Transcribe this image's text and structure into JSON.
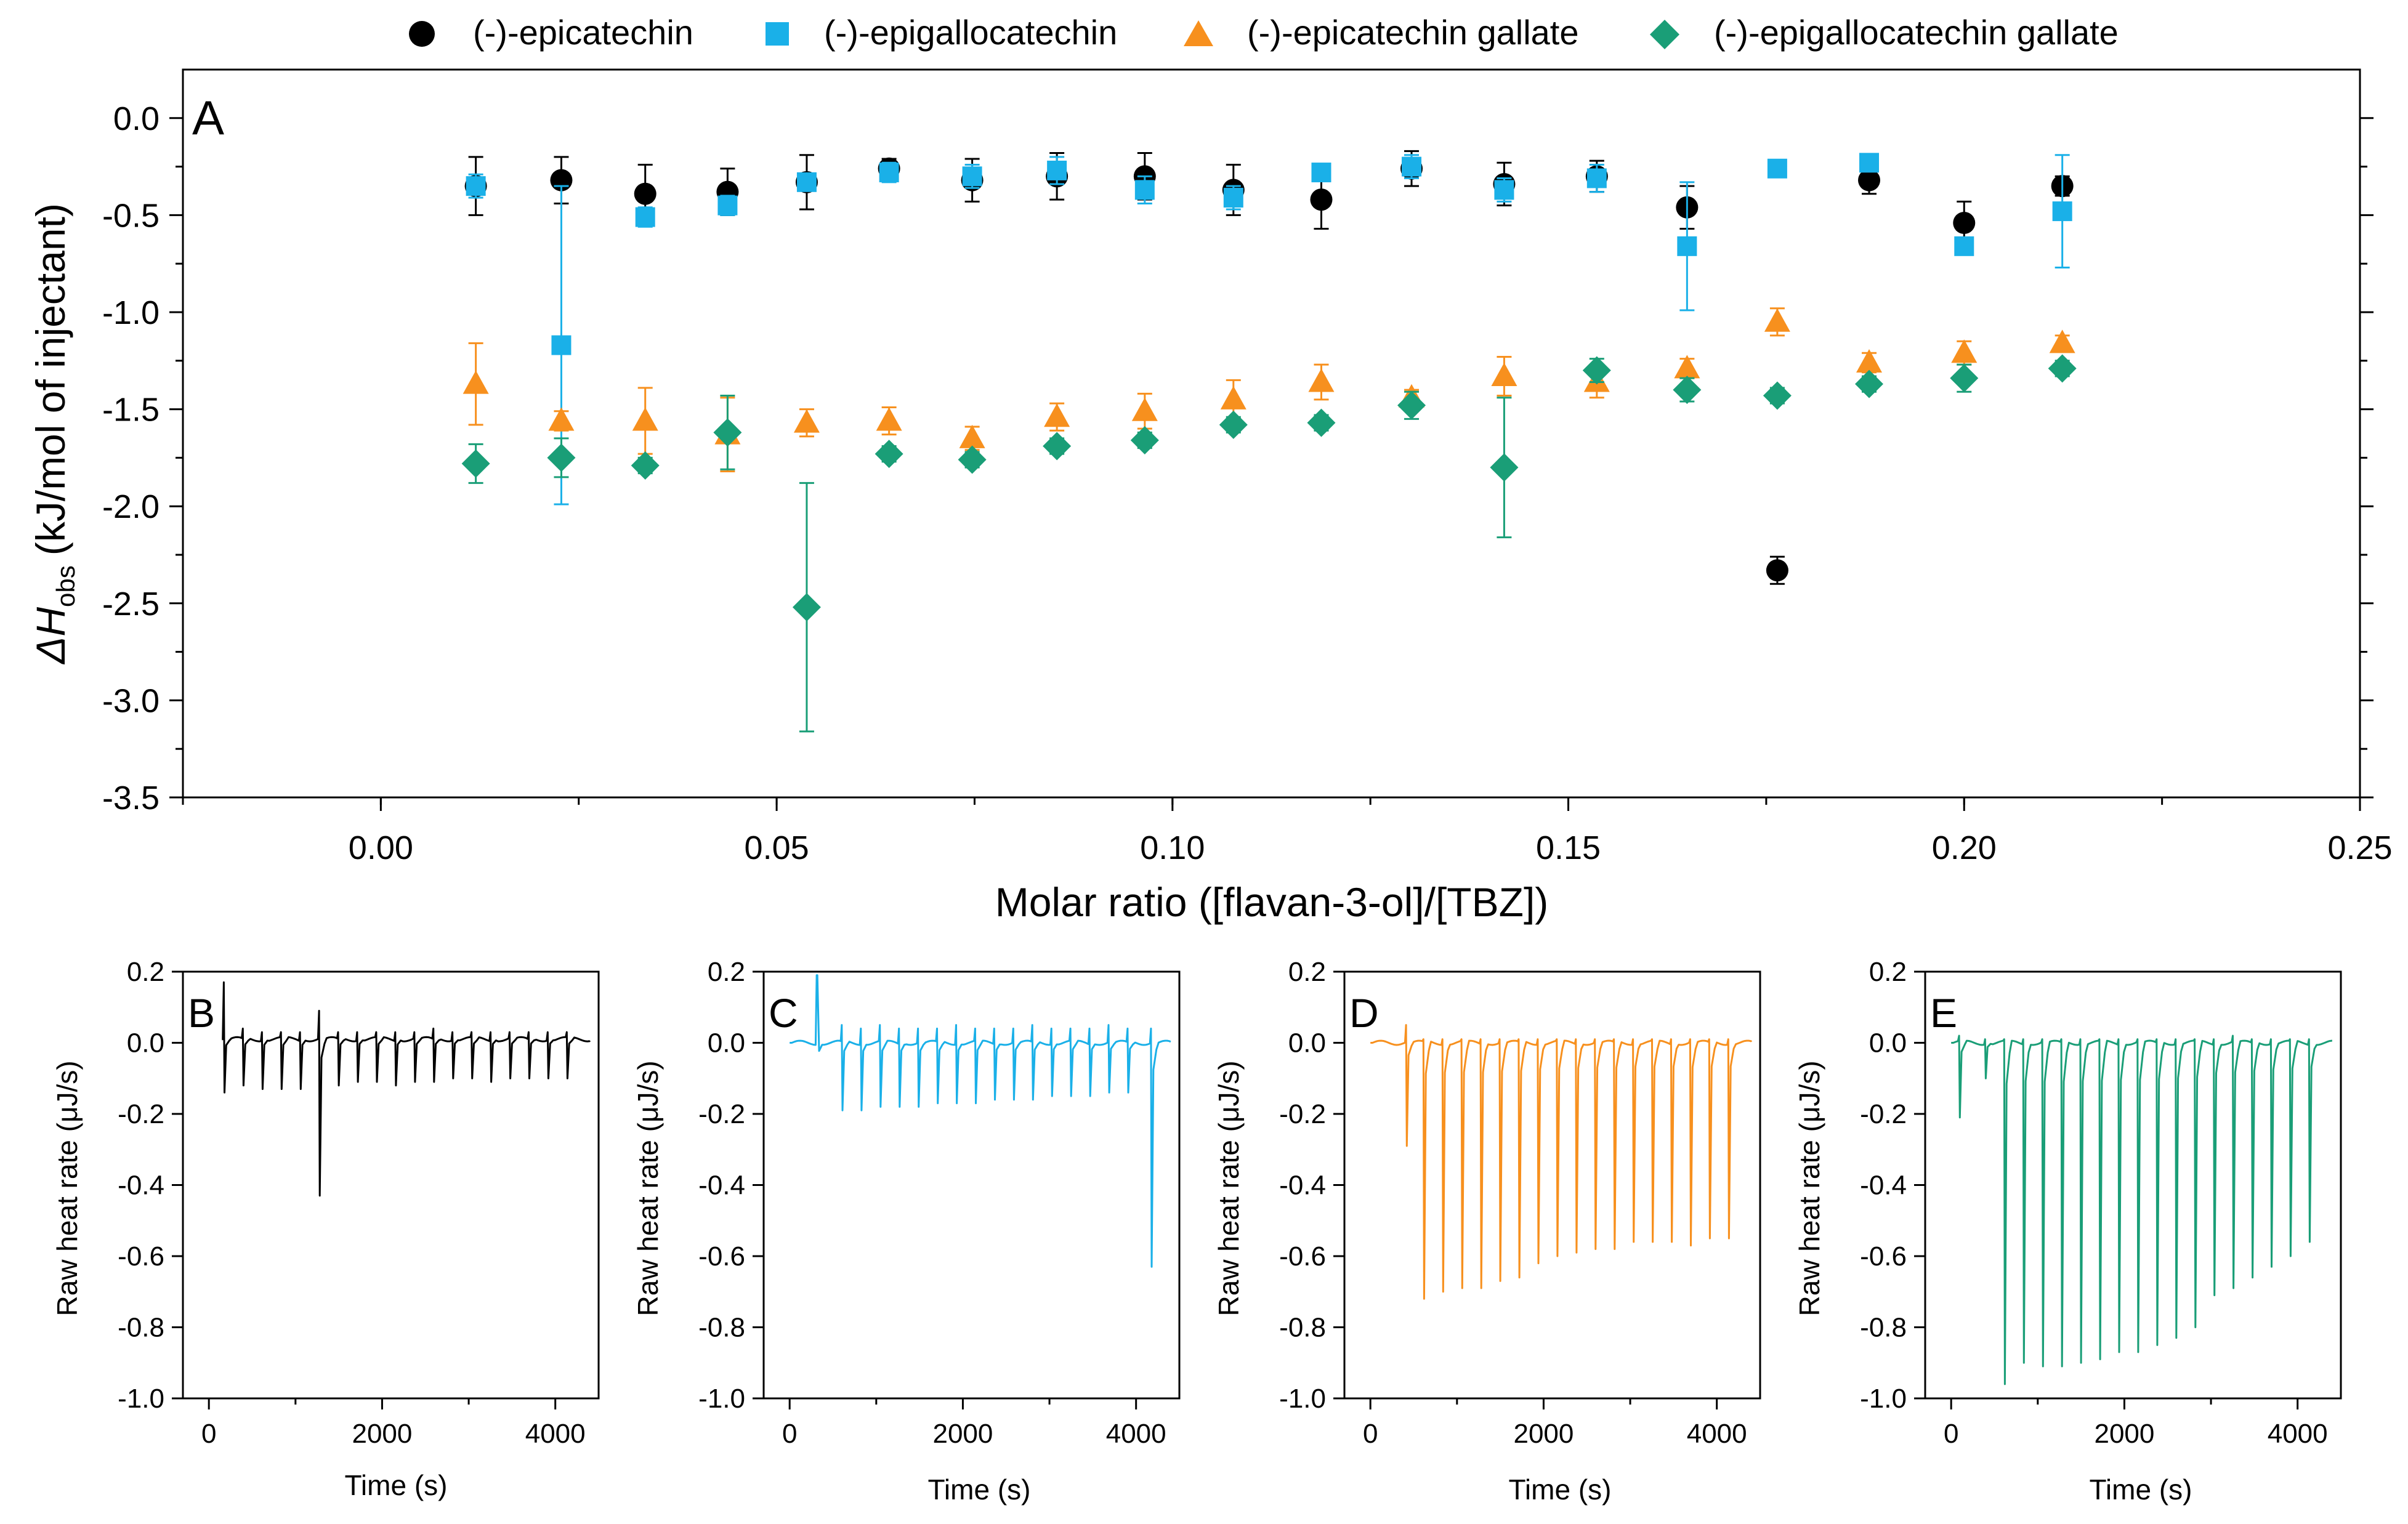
{
  "chart_data": [
    {
      "panel": "A",
      "type": "scatter",
      "title": "",
      "xlabel": "Molar ratio ([flavan-3-ol]/[TBZ])",
      "ylabel_prefix": "ΔH",
      "ylabel_sub": "obs",
      "ylabel_suffix": "(kJ/mol of injectant)",
      "xlim": [
        -0.025,
        0.25
      ],
      "ylim": [
        -3.5,
        0.25
      ],
      "x_ticks": [
        0.0,
        0.05,
        0.1,
        0.15,
        0.2,
        0.25
      ],
      "x_tick_labels": [
        "0.00",
        "0.05",
        "0.10",
        "0.15",
        "0.20",
        "0.25"
      ],
      "y_ticks": [
        0.0,
        -0.5,
        -1.0,
        -1.5,
        -2.0,
        -2.5,
        -3.0,
        -3.5
      ],
      "y_tick_labels": [
        "0.0",
        "-0.5",
        "-1.0",
        "-1.5",
        "-2.0",
        "-2.5",
        "-3.0",
        "-3.5"
      ],
      "legend_position": "top",
      "series": [
        {
          "name": "(-)-epicatechin",
          "color": "#000000",
          "marker": "circle",
          "x": [
            0.012,
            0.0228,
            0.0334,
            0.0438,
            0.0538,
            0.0642,
            0.0747,
            0.0854,
            0.0965,
            0.1077,
            0.1188,
            0.1302,
            0.1419,
            0.1536,
            0.165,
            0.1764,
            0.188,
            0.2,
            0.2124
          ],
          "y": [
            -0.35,
            -0.32,
            -0.39,
            -0.38,
            -0.33,
            -0.26,
            -0.32,
            -0.3,
            -0.3,
            -0.37,
            -0.42,
            -0.26,
            -0.34,
            -0.3,
            -0.46,
            -2.33,
            -0.32,
            -0.54,
            -0.35
          ],
          "err": [
            0.15,
            0.12,
            0.15,
            0.12,
            0.14,
            0.05,
            0.11,
            0.12,
            0.12,
            0.13,
            0.15,
            0.09,
            0.11,
            0.08,
            0.11,
            0.07,
            0.07,
            0.11,
            0.05
          ]
        },
        {
          "name": "(-)-epigallocatechin",
          "color": "#1ab0e8",
          "marker": "square",
          "x": [
            0.012,
            0.0228,
            0.0334,
            0.0438,
            0.0538,
            0.0642,
            0.0747,
            0.0854,
            0.0965,
            0.1077,
            0.1188,
            0.1302,
            0.1419,
            0.1536,
            0.165,
            0.1764,
            0.188,
            0.2,
            0.2124
          ],
          "y": [
            -0.35,
            -1.17,
            -0.51,
            -0.45,
            -0.33,
            -0.28,
            -0.3,
            -0.27,
            -0.37,
            -0.41,
            -0.28,
            -0.25,
            -0.37,
            -0.31,
            -0.66,
            -0.26,
            -0.23,
            -0.66,
            -0.48
          ],
          "err": [
            0.06,
            0.82,
            0.05,
            0.05,
            0.04,
            0.05,
            0.06,
            0.07,
            0.07,
            0.06,
            0.04,
            0.06,
            0.06,
            0.07,
            0.33,
            0.03,
            0.04,
            0.04,
            0.29
          ]
        },
        {
          "name": "(-)-epicatechin gallate",
          "color": "#f7901e",
          "marker": "triangle",
          "x": [
            0.012,
            0.0228,
            0.0334,
            0.0438,
            0.0538,
            0.0642,
            0.0747,
            0.0854,
            0.0965,
            0.1077,
            0.1188,
            0.1302,
            0.1419,
            0.1536,
            0.165,
            0.1764,
            0.188,
            0.2,
            0.2124
          ],
          "y": [
            -1.37,
            -1.56,
            -1.56,
            -1.63,
            -1.57,
            -1.56,
            -1.65,
            -1.54,
            -1.51,
            -1.45,
            -1.36,
            -1.44,
            -1.33,
            -1.36,
            -1.29,
            -1.05,
            -1.26,
            -1.21,
            -1.16
          ],
          "err": [
            0.21,
            0.05,
            0.17,
            0.19,
            0.07,
            0.07,
            0.06,
            0.07,
            0.09,
            0.1,
            0.09,
            0.04,
            0.1,
            0.08,
            0.05,
            0.07,
            0.05,
            0.06,
            0.04
          ]
        },
        {
          "name": "(-)-epigallocatechin gallate",
          "color": "#1a9e77",
          "marker": "diamond",
          "x": [
            0.012,
            0.0228,
            0.0334,
            0.0438,
            0.0538,
            0.0642,
            0.0747,
            0.0854,
            0.0965,
            0.1077,
            0.1188,
            0.1302,
            0.1419,
            0.1536,
            0.165,
            0.1764,
            0.188,
            0.2,
            0.2124
          ],
          "y": [
            -1.78,
            -1.75,
            -1.79,
            -1.62,
            -2.52,
            -1.73,
            -1.76,
            -1.69,
            -1.66,
            -1.58,
            -1.57,
            -1.48,
            -1.8,
            -1.3,
            -1.4,
            -1.43,
            -1.37,
            -1.34,
            -1.29
          ],
          "err": [
            0.1,
            0.1,
            0.04,
            0.19,
            0.64,
            0.04,
            0.04,
            0.04,
            0.04,
            0.04,
            0.04,
            0.07,
            0.36,
            0.06,
            0.06,
            0.04,
            0.04,
            0.07,
            0.04
          ]
        }
      ]
    },
    {
      "panel": "B",
      "type": "line",
      "title": "",
      "xlabel": "Time (s)",
      "ylabel": "Raw heat rate (μJ/s)",
      "color": "#000000",
      "xlim": [
        -300,
        4500
      ],
      "ylim": [
        -1.0,
        0.2
      ],
      "x_ticks": [
        0,
        2000,
        4000
      ],
      "x_tick_labels": [
        "0",
        "2000",
        "4000"
      ],
      "y_ticks": [
        0.2,
        0.0,
        -0.2,
        -0.4,
        -0.6,
        -0.8,
        -1.0
      ],
      "y_tick_labels": [
        "0.2",
        "0.0",
        "-0.2",
        "-0.4",
        "-0.6",
        "-0.8",
        "-1.0"
      ],
      "baseline": 0.01,
      "start_time": 150,
      "end_time": 4400,
      "injection_times": [
        180,
        400,
        620,
        840,
        1060,
        1280,
        1500,
        1720,
        1940,
        2160,
        2380,
        2600,
        2820,
        3040,
        3260,
        3480,
        3700,
        3920,
        4140
      ],
      "peak_values": [
        -0.14,
        -0.12,
        -0.13,
        -0.13,
        -0.13,
        -0.43,
        -0.12,
        -0.11,
        -0.11,
        -0.12,
        -0.11,
        -0.11,
        -0.1,
        -0.1,
        -0.11,
        -0.1,
        -0.1,
        -0.1,
        -0.1
      ],
      "spike_values": [
        0.16,
        0.03,
        0.02,
        0.02,
        0.02,
        0.08,
        0.02,
        0.02,
        0.02,
        0.02,
        0.02,
        0.03,
        0.02,
        0.02,
        0.02,
        0.02,
        0.02,
        0.02,
        0.02
      ]
    },
    {
      "panel": "C",
      "type": "line",
      "title": "",
      "xlabel": "Time (s)",
      "ylabel": "Raw heat rate (μJ/s)",
      "color": "#1ab0e8",
      "xlim": [
        -300,
        4500
      ],
      "ylim": [
        -1.0,
        0.2
      ],
      "x_ticks": [
        0,
        2000,
        4000
      ],
      "x_tick_labels": [
        "0",
        "2000",
        "4000"
      ],
      "y_ticks": [
        0.2,
        0.0,
        -0.2,
        -0.4,
        -0.6,
        -0.8,
        -1.0
      ],
      "y_tick_labels": [
        "0.2",
        "0.0",
        "-0.2",
        "-0.4",
        "-0.6",
        "-0.8",
        "-1.0"
      ],
      "baseline": 0.0,
      "start_time": 0,
      "end_time": 4400,
      "injection_times": [
        320,
        610,
        830,
        1050,
        1270,
        1490,
        1710,
        1930,
        2150,
        2370,
        2590,
        2810,
        3030,
        3250,
        3470,
        3690,
        3910,
        4180
      ],
      "peak_values": [
        0.19,
        -0.19,
        -0.19,
        -0.18,
        -0.18,
        -0.18,
        -0.17,
        -0.17,
        -0.17,
        -0.16,
        -0.16,
        -0.16,
        -0.15,
        -0.15,
        -0.15,
        -0.14,
        -0.14,
        -0.63
      ],
      "spike_values": [
        0.19,
        0.05,
        0.04,
        0.05,
        0.04,
        0.04,
        0.04,
        0.05,
        0.04,
        0.04,
        0.04,
        0.05,
        0.04,
        0.04,
        0.04,
        0.05,
        0.04,
        0.04
      ]
    },
    {
      "panel": "D",
      "type": "line",
      "title": "",
      "xlabel": "Time (s)",
      "ylabel": "Raw heat rate (μJ/s)",
      "color": "#f7901e",
      "xlim": [
        -300,
        4500
      ],
      "ylim": [
        -1.0,
        0.2
      ],
      "x_ticks": [
        0,
        2000,
        4000
      ],
      "x_tick_labels": [
        "0",
        "2000",
        "4000"
      ],
      "y_ticks": [
        0.2,
        0.0,
        -0.2,
        -0.4,
        -0.6,
        -0.8,
        -1.0
      ],
      "y_tick_labels": [
        "0.2",
        "0.0",
        "-0.2",
        "-0.4",
        "-0.6",
        "-0.8",
        "-1.0"
      ],
      "baseline": 0.0,
      "start_time": 0,
      "end_time": 4400,
      "injection_times": [
        420,
        620,
        840,
        1060,
        1280,
        1500,
        1720,
        1940,
        2160,
        2380,
        2600,
        2820,
        3040,
        3260,
        3480,
        3700,
        3920,
        4140
      ],
      "peak_values": [
        -0.29,
        -0.72,
        -0.7,
        -0.69,
        -0.69,
        -0.67,
        -0.66,
        -0.62,
        -0.6,
        -0.59,
        -0.58,
        -0.58,
        -0.56,
        -0.56,
        -0.56,
        -0.57,
        -0.55,
        -0.55
      ],
      "spike_values": [
        0.05,
        0.01,
        0.01,
        0.01,
        0.01,
        0.01,
        0.01,
        0.01,
        0.01,
        0.01,
        0.01,
        0.01,
        0.01,
        0.01,
        0.01,
        0.01,
        0.01,
        0.01
      ]
    },
    {
      "panel": "E",
      "type": "line",
      "title": "",
      "xlabel": "Time (s)",
      "ylabel": "Raw heat rate (μJ/s)",
      "color": "#1a9e77",
      "xlim": [
        -300,
        4500
      ],
      "ylim": [
        -1.0,
        0.2
      ],
      "x_ticks": [
        0,
        2000,
        4000
      ],
      "x_tick_labels": [
        "0",
        "2000",
        "4000"
      ],
      "y_ticks": [
        0.2,
        0.0,
        -0.2,
        -0.4,
        -0.6,
        -0.8,
        -1.0
      ],
      "y_tick_labels": [
        "0.2",
        "0.0",
        "-0.2",
        "-0.4",
        "-0.6",
        "-0.8",
        "-1.0"
      ],
      "baseline": 0.0,
      "start_time": 0,
      "end_time": 4400,
      "injection_times": [
        100,
        400,
        620,
        840,
        1060,
        1280,
        1500,
        1720,
        1940,
        2160,
        2380,
        2600,
        2820,
        3040,
        3260,
        3480,
        3700,
        3920,
        4140
      ],
      "peak_values": [
        -0.21,
        -0.1,
        -0.96,
        -0.9,
        -0.91,
        -0.91,
        -0.9,
        -0.89,
        -0.87,
        -0.87,
        -0.85,
        -0.83,
        -0.8,
        -0.71,
        -0.69,
        -0.66,
        -0.63,
        -0.6,
        -0.56
      ],
      "spike_values": [
        0.02,
        0.01,
        0.01,
        0.01,
        0.01,
        0.01,
        0.01,
        0.01,
        0.01,
        0.01,
        0.01,
        0.01,
        0.01,
        0.01,
        0.02,
        0.01,
        0.01,
        0.01,
        0.01
      ]
    }
  ]
}
